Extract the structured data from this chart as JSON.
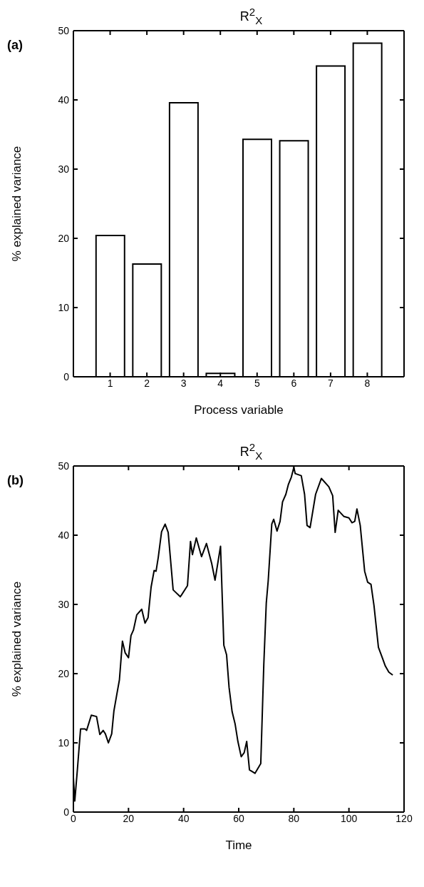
{
  "chart_data": [
    {
      "type": "bar",
      "title": "R$^{2}$$_{X}$",
      "xlabel": "Process variable",
      "ylabel": "% explained variance",
      "annotations": [
        "(a)"
      ],
      "x": [
        1,
        2,
        3,
        4,
        5,
        6,
        7,
        8
      ],
      "values": [
        20.4,
        16.3,
        39.6,
        0.5,
        34.3,
        34.1,
        44.9,
        48.2
      ],
      "color": "#ffffff",
      "xlim": [
        0,
        9
      ],
      "xticks": [
        1,
        2,
        3,
        4,
        5,
        6,
        7,
        8
      ],
      "ylim": [
        0,
        50
      ],
      "yticks": [
        0,
        10,
        20,
        30,
        40,
        50
      ],
      "grid": false
    },
    {
      "type": "line",
      "title": "R$^{2}$$_{X}$",
      "xlabel": "Time",
      "ylabel": "% explained variance",
      "annotations": [
        "(b)"
      ],
      "marker": "none",
      "color": "#000000",
      "x": [
        0,
        0.5,
        1.4,
        2.6,
        4.2,
        4.8,
        6.5,
        8.4,
        9.6,
        10.8,
        11.6,
        12.7,
        13.9,
        14.7,
        15.8,
        16.7,
        17.8,
        18.8,
        20,
        20.9,
        21.8,
        23,
        24.8,
        26,
        27.1,
        28.2,
        29.3,
        30,
        30.8,
        32,
        33.3,
        34.4,
        36.2,
        38.8,
        41.4,
        42.5,
        43.2,
        44.6,
        46.5,
        48.3,
        50.2,
        51.4,
        53.4,
        54.6,
        55.6,
        56.5,
        57.6,
        58.7,
        59.7,
        60.9,
        62,
        62.9,
        63.9,
        65.9,
        68,
        69.1,
        70,
        70.7,
        72,
        72.7,
        73.9,
        75,
        75.9,
        77.1,
        78,
        79.1,
        80,
        80.5,
        82.7,
        83.9,
        84.8,
        85.9,
        87.9,
        90,
        92.7,
        94.1,
        95,
        96.1,
        98.2,
        100,
        101.1,
        102.1,
        102.9,
        104.1,
        105.7,
        106.8,
        108,
        109.1,
        110.7,
        112.1,
        113.2,
        114.5,
        115.9
      ],
      "values": [
        5,
        1.6,
        5.9,
        12,
        12,
        11.8,
        14,
        13.8,
        11.2,
        11.8,
        11.3,
        10,
        11.3,
        14.6,
        17.1,
        19.1,
        24.7,
        23,
        22.3,
        25.5,
        26.3,
        28.5,
        29.3,
        27.3,
        28.1,
        32.5,
        34.9,
        34.8,
        36.8,
        40.5,
        41.6,
        40.4,
        32.1,
        31.1,
        32.7,
        39.1,
        37.2,
        39.6,
        36.9,
        38.8,
        35.9,
        33.5,
        38.4,
        24.1,
        22.7,
        18,
        14.5,
        12.7,
        10.2,
        8,
        8.6,
        10.2,
        6.1,
        5.6,
        7,
        21.3,
        30.2,
        33.4,
        41.6,
        42.3,
        40.6,
        42,
        44.8,
        45.9,
        47.3,
        48.4,
        49.8,
        48.9,
        48.6,
        45.9,
        41.4,
        41.1,
        45.9,
        48.2,
        47,
        45.7,
        40.4,
        43.6,
        42.7,
        42.5,
        41.8,
        42,
        43.8,
        41.4,
        34.8,
        33.2,
        32.9,
        29.8,
        23.8,
        22.3,
        21.1,
        20.2,
        19.8
      ],
      "xlim": [
        0,
        120
      ],
      "xticks": [
        0,
        20,
        40,
        60,
        80,
        100,
        120
      ],
      "ylim": [
        0,
        50
      ],
      "yticks": [
        0,
        10,
        20,
        30,
        40,
        50
      ],
      "grid": false
    }
  ]
}
